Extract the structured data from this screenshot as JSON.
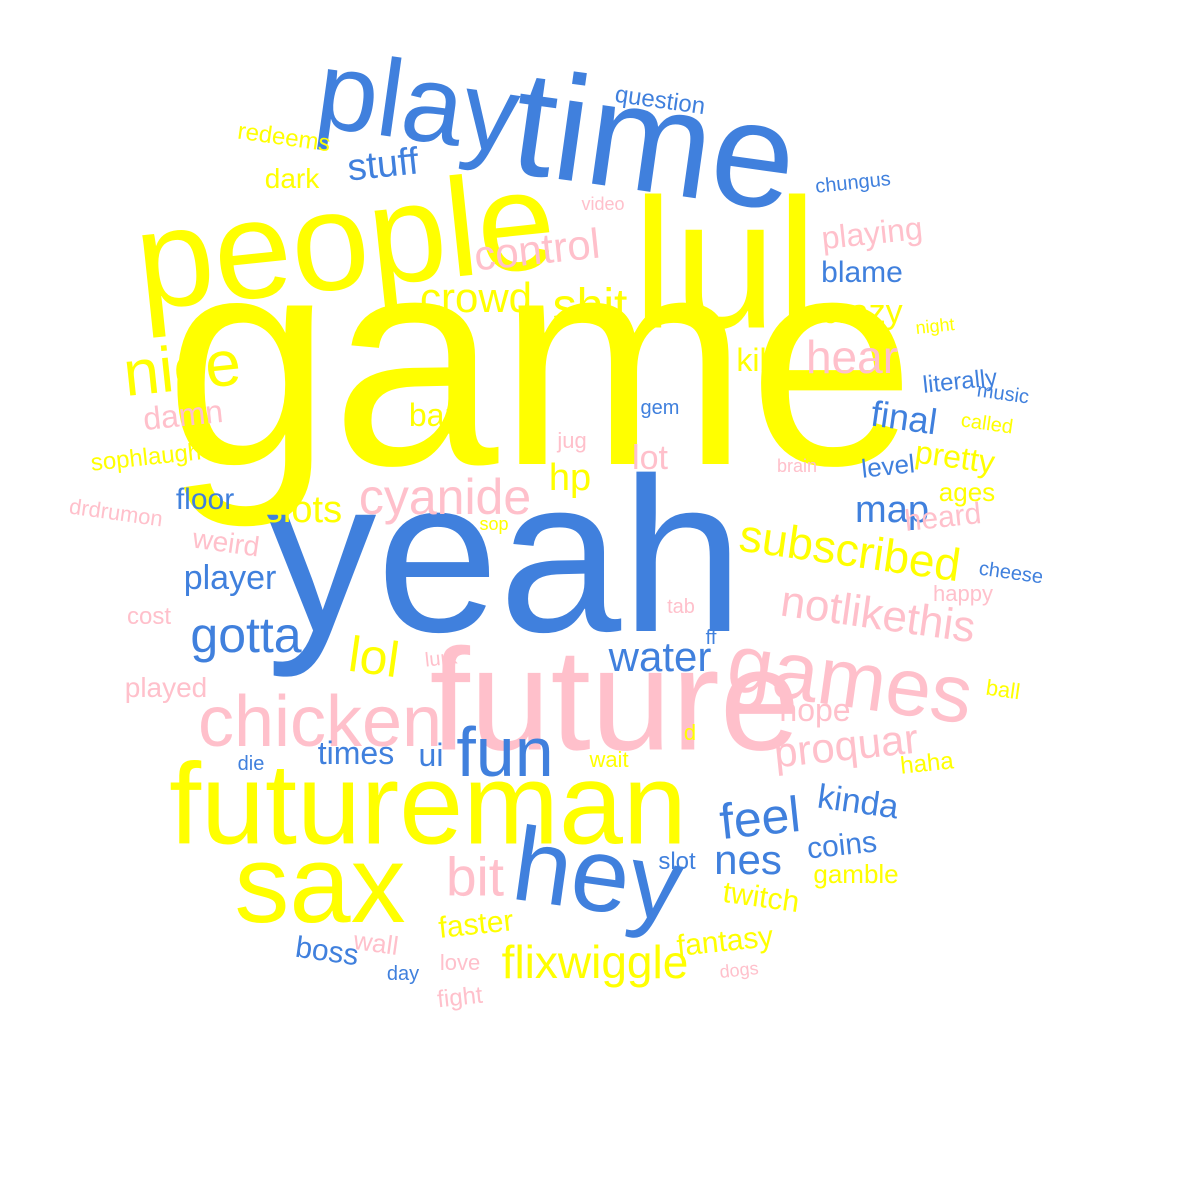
{
  "colors": {
    "yellow": "#ffff00",
    "blue": "#4080dd",
    "pink": "#ffc0cb",
    "background": "#ffffff"
  },
  "words": [
    {
      "text": "game",
      "color": "yellow"
    },
    {
      "text": "yeah",
      "color": "blue"
    },
    {
      "text": "lul",
      "color": "yellow"
    },
    {
      "text": "time",
      "color": "blue"
    },
    {
      "text": "people",
      "color": "yellow"
    },
    {
      "text": "play",
      "color": "blue"
    },
    {
      "text": "future",
      "color": "pink"
    },
    {
      "text": "futureman",
      "color": "yellow"
    },
    {
      "text": "sax",
      "color": "yellow"
    },
    {
      "text": "hey",
      "color": "blue"
    },
    {
      "text": "games",
      "color": "pink"
    },
    {
      "text": "chicken",
      "color": "pink"
    },
    {
      "text": "fun",
      "color": "blue"
    },
    {
      "text": "nice",
      "color": "yellow"
    },
    {
      "text": "cyanide",
      "color": "pink"
    },
    {
      "text": "gotta",
      "color": "blue"
    },
    {
      "text": "subscribed",
      "color": "yellow"
    },
    {
      "text": "notlikethis",
      "color": "pink"
    },
    {
      "text": "control",
      "color": "pink"
    },
    {
      "text": "shit",
      "color": "yellow"
    },
    {
      "text": "crowd",
      "color": "yellow"
    },
    {
      "text": "stuff",
      "color": "blue"
    },
    {
      "text": "hear",
      "color": "pink"
    },
    {
      "text": "lol",
      "color": "yellow"
    },
    {
      "text": "bit",
      "color": "pink"
    },
    {
      "text": "flixwiggle",
      "color": "yellow"
    },
    {
      "text": "feel",
      "color": "blue"
    },
    {
      "text": "proquar",
      "color": "pink"
    },
    {
      "text": "water",
      "color": "blue"
    },
    {
      "text": "nes",
      "color": "blue"
    },
    {
      "text": "slots",
      "color": "yellow"
    },
    {
      "text": "hp",
      "color": "yellow"
    },
    {
      "text": "map",
      "color": "blue"
    },
    {
      "text": "player",
      "color": "blue"
    },
    {
      "text": "kinda",
      "color": "blue"
    },
    {
      "text": "final",
      "color": "blue"
    },
    {
      "text": "pretty",
      "color": "yellow"
    },
    {
      "text": "crazy",
      "color": "yellow"
    },
    {
      "text": "blame",
      "color": "blue"
    },
    {
      "text": "playing",
      "color": "pink"
    },
    {
      "text": "kill",
      "color": "yellow"
    },
    {
      "text": "lot",
      "color": "pink"
    },
    {
      "text": "bar",
      "color": "yellow"
    },
    {
      "text": "damn",
      "color": "pink"
    },
    {
      "text": "floor",
      "color": "blue"
    },
    {
      "text": "weird",
      "color": "pink"
    },
    {
      "text": "times",
      "color": "blue"
    },
    {
      "text": "ui",
      "color": "blue"
    },
    {
      "text": "hope",
      "color": "pink"
    },
    {
      "text": "coins",
      "color": "blue"
    },
    {
      "text": "twitch",
      "color": "yellow"
    },
    {
      "text": "fantasy",
      "color": "yellow"
    },
    {
      "text": "faster",
      "color": "yellow"
    },
    {
      "text": "boss",
      "color": "blue"
    },
    {
      "text": "heard",
      "color": "pink"
    },
    {
      "text": "level",
      "color": "blue"
    },
    {
      "text": "ages",
      "color": "yellow"
    },
    {
      "text": "literally",
      "color": "blue"
    },
    {
      "text": "dark",
      "color": "yellow"
    },
    {
      "text": "redeems",
      "color": "yellow"
    },
    {
      "text": "question",
      "color": "blue"
    },
    {
      "text": "chungus",
      "color": "blue"
    },
    {
      "text": "video",
      "color": "pink"
    },
    {
      "text": "night",
      "color": "yellow"
    },
    {
      "text": "music",
      "color": "blue"
    },
    {
      "text": "called",
      "color": "yellow"
    },
    {
      "text": "brain",
      "color": "pink"
    },
    {
      "text": "gem",
      "color": "blue"
    },
    {
      "text": "jug",
      "color": "pink"
    },
    {
      "text": "sophlaugh",
      "color": "yellow"
    },
    {
      "text": "drdrumon",
      "color": "pink"
    },
    {
      "text": "sop",
      "color": "yellow"
    },
    {
      "text": "cheese",
      "color": "blue"
    },
    {
      "text": "happy",
      "color": "pink"
    },
    {
      "text": "tab",
      "color": "pink"
    },
    {
      "text": "cost",
      "color": "pink"
    },
    {
      "text": "ff",
      "color": "blue"
    },
    {
      "text": "lurk",
      "color": "pink"
    },
    {
      "text": "played",
      "color": "pink"
    },
    {
      "text": "ball",
      "color": "yellow"
    },
    {
      "text": "d",
      "color": "yellow"
    },
    {
      "text": "die",
      "color": "blue"
    },
    {
      "text": "wait",
      "color": "yellow"
    },
    {
      "text": "haha",
      "color": "yellow"
    },
    {
      "text": "slot",
      "color": "blue"
    },
    {
      "text": "gamble",
      "color": "yellow"
    },
    {
      "text": "wall",
      "color": "pink"
    },
    {
      "text": "love",
      "color": "pink"
    },
    {
      "text": "day",
      "color": "blue"
    },
    {
      "text": "dogs",
      "color": "pink"
    },
    {
      "text": "fight",
      "color": "pink"
    }
  ]
}
